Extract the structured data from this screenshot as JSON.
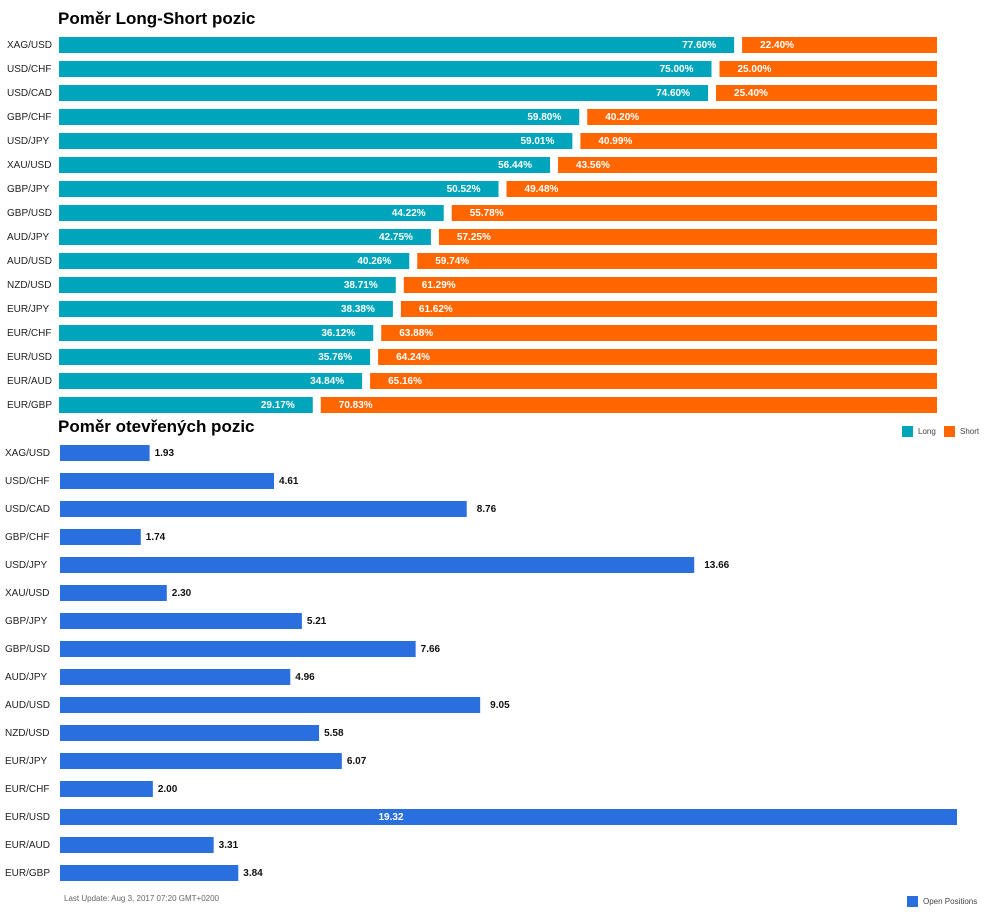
{
  "colors": {
    "long": "#00a5bb",
    "short": "#ff6600",
    "open": "#2a6fde"
  },
  "chart_data": [
    {
      "type": "bar",
      "orientation": "horizontal",
      "stacked": true,
      "title": "Poměr Long-Short pozic",
      "categories": [
        "XAG/USD",
        "USD/CHF",
        "USD/CAD",
        "GBP/CHF",
        "USD/JPY",
        "XAU/USD",
        "GBP/JPY",
        "GBP/USD",
        "AUD/JPY",
        "AUD/USD",
        "NZD/USD",
        "EUR/JPY",
        "EUR/CHF",
        "EUR/USD",
        "EUR/AUD",
        "EUR/GBP"
      ],
      "series": [
        {
          "name": "Long",
          "values": [
            77.6,
            75.0,
            74.6,
            59.8,
            59.01,
            56.44,
            50.52,
            44.22,
            42.75,
            40.26,
            38.71,
            38.38,
            36.12,
            35.76,
            34.84,
            29.17
          ]
        },
        {
          "name": "Short",
          "values": [
            22.4,
            25.0,
            25.4,
            40.2,
            40.99,
            43.56,
            49.48,
            55.78,
            57.25,
            59.74,
            61.29,
            61.62,
            63.88,
            64.24,
            65.16,
            70.83
          ]
        }
      ],
      "data_labels": {
        "long": [
          "77.60%",
          "75.00%",
          "74.60%",
          "59.80%",
          "59.01%",
          "56.44%",
          "50.52%",
          "44.22%",
          "42.75%",
          "40.26%",
          "38.71%",
          "38.38%",
          "36.12%",
          "35.76%",
          "34.84%",
          "29.17%"
        ],
        "short": [
          "22.40%",
          "25.00%",
          "25.40%",
          "40.20%",
          "40.99%",
          "43.56%",
          "49.48%",
          "55.78%",
          "57.25%",
          "59.74%",
          "61.29%",
          "61.62%",
          "63.88%",
          "64.24%",
          "65.16%",
          "70.83%"
        ]
      },
      "xlim": [
        0,
        100
      ],
      "legend": "bottom-right"
    },
    {
      "type": "bar",
      "orientation": "horizontal",
      "title": "Poměr otevřených pozic",
      "categories": [
        "XAG/USD",
        "USD/CHF",
        "USD/CAD",
        "GBP/CHF",
        "USD/JPY",
        "XAU/USD",
        "GBP/JPY",
        "GBP/USD",
        "AUD/JPY",
        "AUD/USD",
        "NZD/USD",
        "EUR/JPY",
        "EUR/CHF",
        "EUR/USD",
        "EUR/AUD",
        "EUR/GBP"
      ],
      "series": [
        {
          "name": "Open Positions",
          "values": [
            1.93,
            4.61,
            8.76,
            1.74,
            13.66,
            2.3,
            5.21,
            7.66,
            4.96,
            9.05,
            5.58,
            6.07,
            2.0,
            19.32,
            3.31,
            3.84
          ]
        }
      ],
      "data_labels": [
        "1.93",
        "4.61",
        "8.76",
        "1.74",
        "13.66",
        "2.30",
        "5.21",
        "7.66",
        "4.96",
        "9.05",
        "5.58",
        "6.07",
        "2.00",
        "19.32",
        "3.31",
        "3.84"
      ],
      "xlim": [
        0,
        19.32
      ],
      "legend": "bottom-right"
    }
  ],
  "legend": {
    "long": "Long",
    "short": "Short",
    "open": "Open Positions"
  },
  "footer": "Last Update: Aug 3, 2017 07:20 GMT+0200"
}
